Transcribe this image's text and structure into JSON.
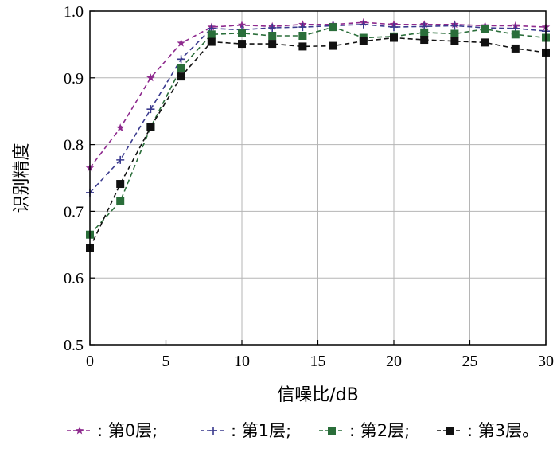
{
  "chart_data": {
    "type": "line",
    "xlabel": "信噪比/dB",
    "ylabel": "识别精度",
    "xlim": [
      0,
      30
    ],
    "ylim": [
      0.5,
      1.0
    ],
    "xticks": [
      "0",
      "5",
      "10",
      "15",
      "20",
      "25",
      "30"
    ],
    "yticks": [
      "0.5",
      "0.6",
      "0.7",
      "0.8",
      "0.9",
      "1.0"
    ],
    "grid": true,
    "legend_position": "bottom",
    "x": [
      0,
      2,
      4,
      6,
      8,
      10,
      12,
      14,
      16,
      18,
      20,
      22,
      24,
      26,
      28,
      30
    ],
    "series": [
      {
        "name": "第0层;",
        "marker": "star",
        "color": "#8e2a8e",
        "values": [
          0.765,
          0.825,
          0.9,
          0.952,
          0.976,
          0.979,
          0.977,
          0.98,
          0.98,
          0.983,
          0.98,
          0.98,
          0.98,
          0.978,
          0.978,
          0.976
        ]
      },
      {
        "name": "第1层;",
        "marker": "plus",
        "color": "#3a3a8e",
        "values": [
          0.728,
          0.777,
          0.853,
          0.928,
          0.974,
          0.972,
          0.975,
          0.976,
          0.978,
          0.98,
          0.976,
          0.977,
          0.978,
          0.975,
          0.974,
          0.97
        ]
      },
      {
        "name": "第2层;",
        "marker": "square",
        "color": "#2a6e3a",
        "values": [
          0.665,
          0.715,
          0.826,
          0.915,
          0.965,
          0.967,
          0.963,
          0.963,
          0.976,
          0.96,
          0.962,
          0.968,
          0.966,
          0.973,
          0.965,
          0.96
        ]
      },
      {
        "name": "第3层。",
        "marker": "square",
        "color": "#111111",
        "values": [
          0.645,
          0.741,
          0.826,
          0.902,
          0.954,
          0.951,
          0.951,
          0.947,
          0.948,
          0.955,
          0.96,
          0.957,
          0.955,
          0.953,
          0.944,
          0.938
        ]
      }
    ]
  }
}
